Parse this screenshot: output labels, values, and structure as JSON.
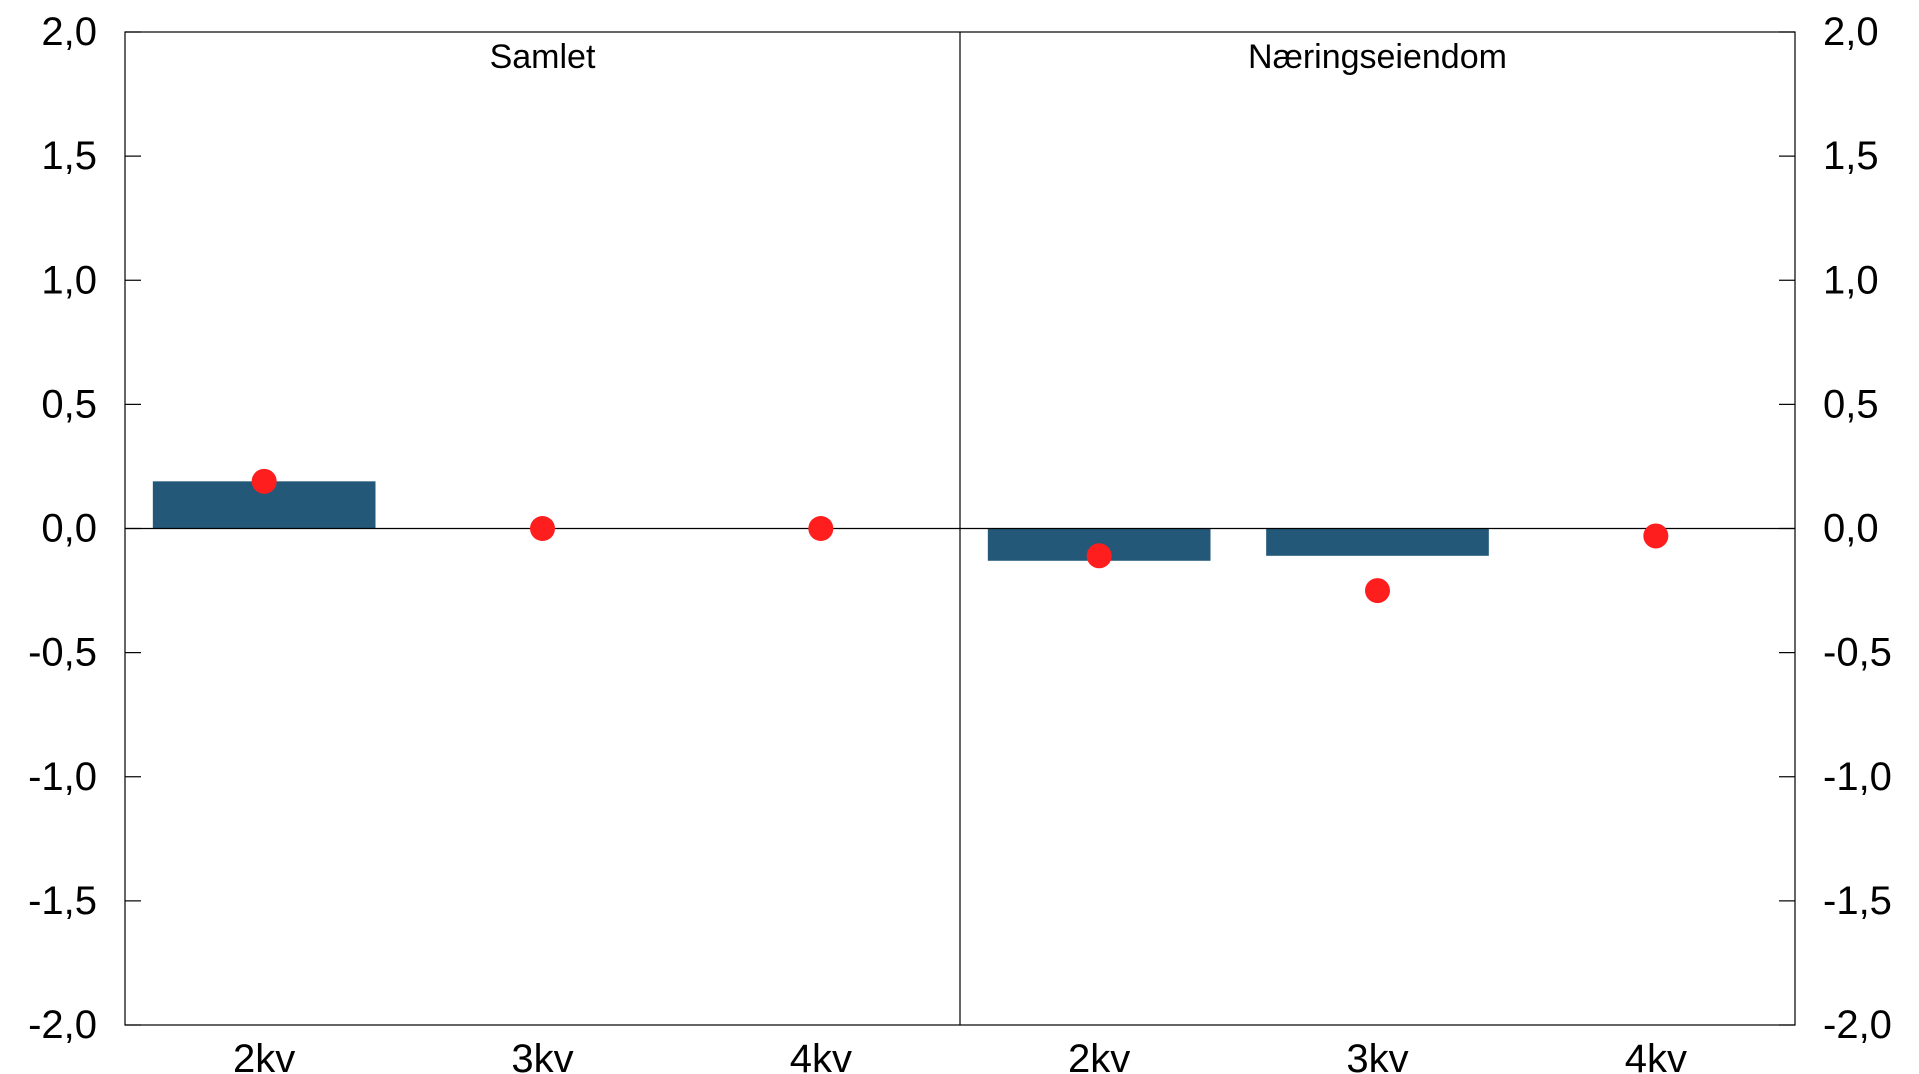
{
  "chart_data": {
    "type": "bar",
    "ylim": [
      -2.0,
      2.0
    ],
    "y_ticks": [
      "-2,0",
      "-1,5",
      "-1,0",
      "-0,5",
      "0,0",
      "0,5",
      "1,0",
      "1,5",
      "2,0"
    ],
    "y_tick_values": [
      -2.0,
      -1.5,
      -1.0,
      -0.5,
      0.0,
      0.5,
      1.0,
      1.5,
      2.0
    ],
    "grid": false,
    "colors": {
      "bars": "#235878",
      "dots": "#ff1e1e",
      "axis": "#000000"
    },
    "panels": [
      {
        "title": "Samlet",
        "categories": [
          "2kv",
          "3kv",
          "4kv"
        ],
        "bars": [
          0.19,
          null,
          null
        ],
        "dots": [
          0.19,
          0.0,
          0.0
        ]
      },
      {
        "title": "Næringseiendom",
        "categories": [
          "2kv",
          "3kv",
          "4kv"
        ],
        "bars": [
          -0.13,
          -0.11,
          null
        ],
        "dots": [
          -0.11,
          -0.25,
          -0.03
        ]
      }
    ]
  }
}
